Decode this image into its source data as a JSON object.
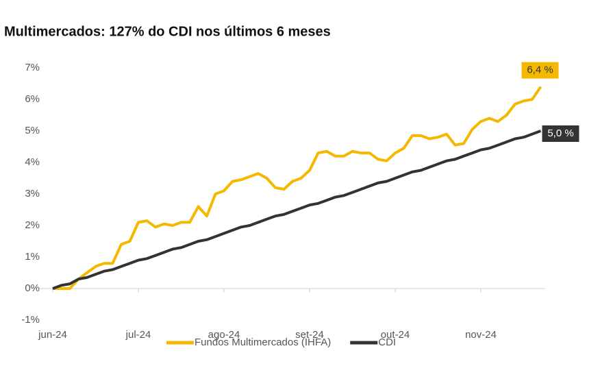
{
  "chart_data": {
    "type": "line",
    "title": "Multimercados: 127% do CDI nos últimos 6 meses",
    "categories": [
      "jun-24",
      null,
      null,
      null,
      null,
      null,
      null,
      null,
      null,
      null,
      "jul-24",
      null,
      null,
      null,
      null,
      null,
      null,
      null,
      null,
      null,
      "ago-24",
      null,
      null,
      null,
      null,
      null,
      null,
      null,
      null,
      null,
      "set-24",
      null,
      null,
      null,
      null,
      null,
      null,
      null,
      null,
      null,
      "out-24",
      null,
      null,
      null,
      null,
      null,
      null,
      null,
      null,
      null,
      "nov-24",
      null,
      null,
      null,
      null,
      null,
      null,
      null
    ],
    "series": [
      {
        "name": "Fundos Multimercados (IHFA)",
        "color": "#f5b800",
        "values": [
          0,
          0.0,
          0.0,
          0.3,
          0.5,
          0.7,
          0.8,
          0.8,
          1.4,
          1.5,
          2.1,
          2.15,
          1.95,
          2.05,
          2.0,
          2.1,
          2.1,
          2.6,
          2.3,
          3.0,
          3.1,
          3.4,
          3.45,
          3.55,
          3.65,
          3.5,
          3.2,
          3.15,
          3.4,
          3.5,
          3.75,
          4.3,
          4.35,
          4.2,
          4.2,
          4.35,
          4.3,
          4.3,
          4.1,
          4.05,
          4.3,
          4.45,
          4.85,
          4.85,
          4.75,
          4.8,
          4.9,
          4.55,
          4.6,
          5.05,
          5.3,
          5.4,
          5.3,
          5.5,
          5.85,
          5.95,
          6.0,
          6.4
        ],
        "value_labels": [
          null,
          null,
          null,
          null,
          null,
          null,
          null,
          null,
          null,
          null,
          null,
          null,
          null,
          null,
          null,
          null,
          null,
          null,
          null,
          null,
          null,
          null,
          null,
          null,
          null,
          null,
          null,
          null,
          null,
          null,
          null,
          null,
          null,
          null,
          null,
          null,
          null,
          null,
          null,
          null,
          null,
          null,
          null,
          null,
          null,
          null,
          null,
          null,
          null,
          null,
          null,
          null,
          null,
          null,
          null,
          null,
          null,
          "6,4 %"
        ]
      },
      {
        "name": "CDI",
        "color": "#333333",
        "values": [
          0,
          0.1,
          0.15,
          0.3,
          0.35,
          0.45,
          0.55,
          0.6,
          0.7,
          0.8,
          0.9,
          0.95,
          1.05,
          1.15,
          1.25,
          1.3,
          1.4,
          1.5,
          1.55,
          1.65,
          1.75,
          1.85,
          1.95,
          2.0,
          2.1,
          2.2,
          2.3,
          2.35,
          2.45,
          2.55,
          2.65,
          2.7,
          2.8,
          2.9,
          2.95,
          3.05,
          3.15,
          3.25,
          3.35,
          3.4,
          3.5,
          3.6,
          3.7,
          3.75,
          3.85,
          3.95,
          4.05,
          4.1,
          4.2,
          4.3,
          4.4,
          4.45,
          4.55,
          4.65,
          4.75,
          4.8,
          4.9,
          5.0
        ],
        "value_labels": [
          null,
          null,
          null,
          null,
          null,
          null,
          null,
          null,
          null,
          null,
          null,
          null,
          null,
          null,
          null,
          null,
          null,
          null,
          null,
          null,
          null,
          null,
          null,
          null,
          null,
          null,
          null,
          null,
          null,
          null,
          null,
          null,
          null,
          null,
          null,
          null,
          null,
          null,
          null,
          null,
          null,
          null,
          null,
          null,
          null,
          null,
          null,
          null,
          null,
          null,
          null,
          null,
          null,
          null,
          null,
          null,
          null,
          "5,0 %"
        ]
      }
    ],
    "ylim": [
      -1,
      7
    ],
    "yticks": [
      {
        "value": -1,
        "label": "-1%"
      },
      {
        "value": 0,
        "label": "0%"
      },
      {
        "value": 1,
        "label": "1%"
      },
      {
        "value": 2,
        "label": "2%"
      },
      {
        "value": 3,
        "label": "3%"
      },
      {
        "value": 4,
        "label": "4%"
      },
      {
        "value": 5,
        "label": "5%"
      },
      {
        "value": 6,
        "label": "6%"
      },
      {
        "value": 7,
        "label": "7%"
      }
    ],
    "grid": false
  }
}
